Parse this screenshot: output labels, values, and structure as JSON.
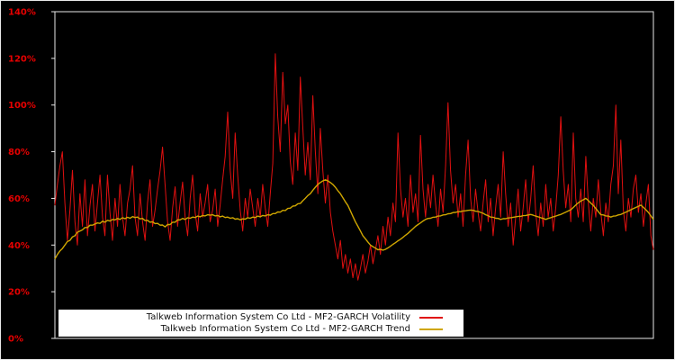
{
  "colors": {
    "background": "#000000",
    "frame": "#e8e8e8",
    "tick_labels": "#e60000",
    "legend_bg": "#ffffff",
    "legend_text": "#111111"
  },
  "chart_data": {
    "type": "line",
    "title": "",
    "xlabel": "",
    "ylabel": "",
    "ylim": [
      0,
      140
    ],
    "ytick_step": 20,
    "ytick_labels": [
      "0%",
      "20%",
      "40%",
      "60%",
      "80%",
      "100%",
      "120%",
      "140%"
    ],
    "x_labels_visible": false,
    "grid": false,
    "legend_position": "bottom-center",
    "series": [
      {
        "name": "Talkweb Information System Co Ltd - MF2-GARCH Volatility",
        "color": "#e01010",
        "values": [
          57,
          66,
          74,
          80,
          58,
          42,
          55,
          72,
          50,
          40,
          62,
          48,
          68,
          44,
          57,
          66,
          46,
          58,
          70,
          52,
          44,
          70,
          54,
          42,
          60,
          48,
          66,
          52,
          44,
          58,
          64,
          74,
          52,
          44,
          62,
          50,
          42,
          58,
          68,
          48,
          55,
          64,
          72,
          82,
          66,
          50,
          42,
          56,
          65,
          48,
          58,
          67,
          52,
          44,
          60,
          70,
          54,
          46,
          62,
          52,
          58,
          66,
          50,
          55,
          64,
          48,
          57,
          68,
          78,
          97,
          72,
          60,
          88,
          70,
          55,
          46,
          60,
          52,
          64,
          56,
          48,
          60,
          52,
          66,
          56,
          48,
          62,
          75,
          122,
          95,
          80,
          114,
          92,
          100,
          76,
          66,
          88,
          72,
          112,
          90,
          70,
          84,
          68,
          104,
          80,
          62,
          90,
          72,
          58,
          70,
          54,
          46,
          40,
          34,
          42,
          30,
          36,
          28,
          34,
          26,
          32,
          25,
          30,
          36,
          28,
          33,
          40,
          32,
          38,
          44,
          36,
          48,
          40,
          52,
          44,
          58,
          50,
          88,
          64,
          52,
          60,
          48,
          70,
          54,
          62,
          50,
          87,
          64,
          52,
          66,
          56,
          70,
          58,
          48,
          64,
          54,
          74,
          101,
          72,
          58,
          66,
          52,
          62,
          48,
          70,
          85,
          60,
          50,
          64,
          54,
          46,
          58,
          68,
          50,
          60,
          44,
          56,
          66,
          52,
          80,
          62,
          48,
          58,
          40,
          52,
          64,
          46,
          56,
          68,
          50,
          60,
          74,
          54,
          44,
          58,
          48,
          66,
          52,
          60,
          46,
          56,
          70,
          95,
          72,
          56,
          66,
          50,
          88,
          60,
          52,
          64,
          50,
          78,
          58,
          46,
          60,
          52,
          68,
          54,
          44,
          58,
          50,
          66,
          74,
          100,
          62,
          85,
          55,
          46,
          60,
          52,
          64,
          70,
          54,
          62,
          48,
          58,
          66,
          44,
          38
        ]
      },
      {
        "name": "Talkweb Information System Co Ltd - MF2-GARCH Trend",
        "color": "#cfa600",
        "values": [
          34,
          36,
          37.5,
          38.5,
          40,
          41.5,
          42,
          43.5,
          44,
          45.5,
          46,
          46.5,
          47.5,
          47.5,
          48.5,
          48.5,
          49,
          49.5,
          49.3,
          50.2,
          49.8,
          50.6,
          50.3,
          51,
          50.8,
          51.4,
          51,
          51.7,
          51.3,
          51.9,
          51.5,
          52.2,
          51.8,
          52,
          51.2,
          51.4,
          50.5,
          50.6,
          49.8,
          50,
          49.2,
          49.3,
          48.5,
          48.6,
          47.8,
          48.8,
          48.8,
          49.8,
          49.8,
          50.8,
          50.8,
          51.4,
          51,
          51.7,
          51.5,
          52,
          51.8,
          52.4,
          52.1,
          52.7,
          52.5,
          53,
          52.8,
          53,
          52.5,
          52.7,
          52.1,
          52.4,
          51.8,
          52,
          51.5,
          51.7,
          51.1,
          51.3,
          50.8,
          51.2,
          51.1,
          51.7,
          51.5,
          52,
          51.8,
          52.4,
          52.1,
          52.7,
          52.5,
          53,
          52.8,
          53.5,
          53.5,
          54.2,
          54.1,
          54.9,
          54.8,
          55.7,
          55.8,
          56.7,
          56.8,
          57.7,
          57.8,
          59,
          60,
          61.2,
          62,
          63.5,
          64.8,
          66,
          66.8,
          67.5,
          68,
          67.5,
          66.8,
          66,
          64.8,
          63.3,
          62,
          60.3,
          58.5,
          57,
          54.7,
          52.3,
          50,
          48,
          46,
          44,
          42.7,
          41.3,
          40,
          39.3,
          38.7,
          38,
          38.2,
          37.8,
          38.2,
          38.8,
          39.5,
          40.3,
          41,
          41.8,
          42.5,
          43.3,
          44.2,
          45,
          46,
          47,
          48,
          48.8,
          49.5,
          50.3,
          51,
          51.4,
          51.5,
          51.9,
          52,
          52.4,
          52.5,
          52.9,
          53,
          53.4,
          53.5,
          53.9,
          54,
          54.3,
          54.3,
          54.6,
          54.7,
          54.9,
          55,
          54.9,
          54.5,
          54.4,
          54,
          53.6,
          53,
          52.6,
          52,
          51.9,
          51.5,
          51.4,
          51,
          51.3,
          51.3,
          51.6,
          51.7,
          51.9,
          52.1,
          52.3,
          52.3,
          52.6,
          52.7,
          52.9,
          53.1,
          52.8,
          52.4,
          52.1,
          51.7,
          51.4,
          51,
          51.4,
          51.7,
          52.1,
          52.4,
          52.8,
          53.1,
          53.6,
          54.1,
          54.6,
          55.1,
          56.1,
          57.1,
          58.1,
          58.8,
          59.4,
          60,
          59.1,
          58,
          57,
          55.7,
          54.3,
          53,
          52.9,
          52.5,
          52.4,
          52,
          52.4,
          52.5,
          52.9,
          53.1,
          53.6,
          54.1,
          54.6,
          55.1,
          55.6,
          56.1,
          56.6,
          57.1,
          56.1,
          55.1,
          54,
          52.5,
          51
        ]
      }
    ]
  }
}
